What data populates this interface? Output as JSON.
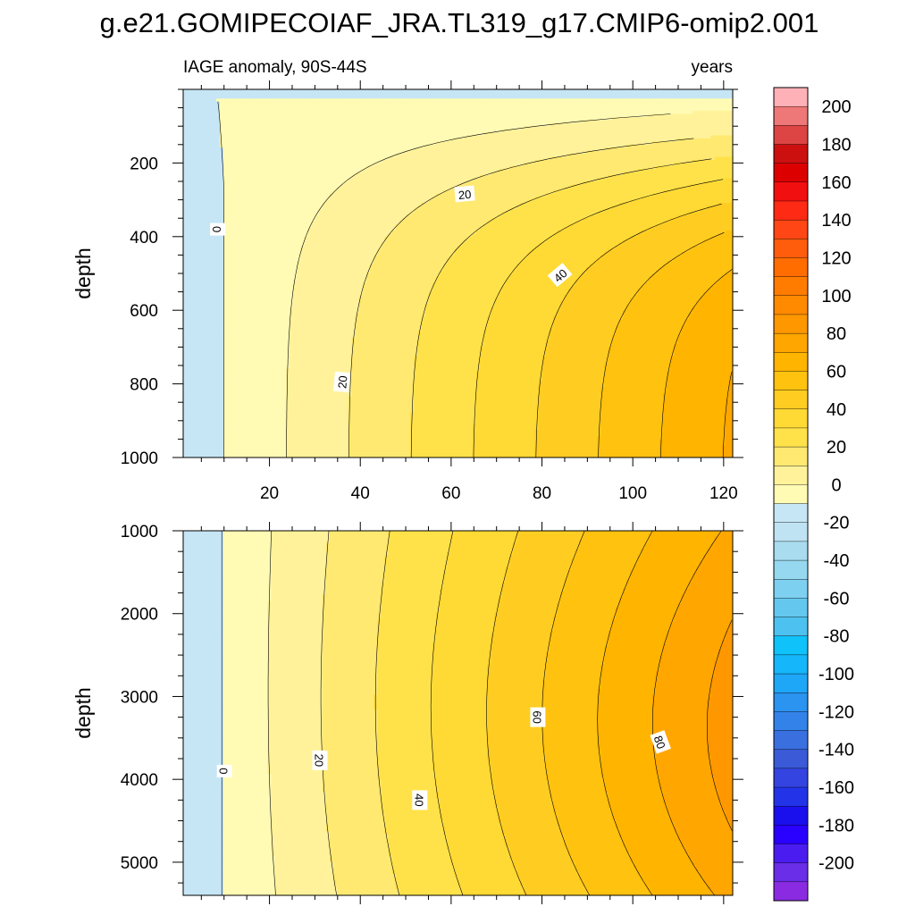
{
  "chart_data": {
    "type": "contour",
    "title": "g.e21.GOMIPECOIAF_JRA.TL319_g17.CMIP6-omip2.001",
    "units_label": "years",
    "colorbar": {
      "levels": [
        -210,
        -200,
        -190,
        -180,
        -170,
        -160,
        -150,
        -140,
        -130,
        -120,
        -110,
        -100,
        -90,
        -80,
        -70,
        -60,
        -50,
        -40,
        -30,
        -20,
        -10,
        0,
        10,
        20,
        30,
        40,
        50,
        60,
        70,
        80,
        90,
        100,
        110,
        120,
        130,
        140,
        150,
        160,
        170,
        180,
        190,
        200,
        210
      ],
      "colors": [
        "#8a2be2",
        "#6a2de8",
        "#4b1cf0",
        "#2a00ff",
        "#1a10ee",
        "#2233e8",
        "#3344e0",
        "#3a5ad8",
        "#3a6fe0",
        "#3282ea",
        "#2b93f0",
        "#1ea6f7",
        "#16b6fa",
        "#0fc2fa",
        "#4dc2f0",
        "#64c8ee",
        "#7ed0f0",
        "#95d8f0",
        "#a9dcef",
        "#bfe3f3",
        "#c6e6f5",
        "#fffbb5",
        "#fff29a",
        "#ffe971",
        "#ffe24a",
        "#ffd934",
        "#ffcd22",
        "#ffc20f",
        "#ffb400",
        "#ffa600",
        "#ff9800",
        "#ff8a00",
        "#ff7c00",
        "#ff6d00",
        "#ff5c0c",
        "#ff4614",
        "#ff2a14",
        "#f20f0f",
        "#dd0000",
        "#cc1010",
        "#dd4444",
        "#ee7777",
        "#ffb1b8"
      ],
      "tick_labels": [
        "-200",
        "-180",
        "-160",
        "-140",
        "-120",
        "-100",
        "-80",
        "-60",
        "-40",
        "-20",
        "0",
        "20",
        "40",
        "60",
        "80",
        "100",
        "120",
        "140",
        "160",
        "180",
        "200"
      ]
    },
    "panels": [
      {
        "name": "upper-ocean",
        "left_label": "IAGE anomaly, 90S-44S",
        "right_label": "years",
        "ylabel": "depth",
        "xlim": [
          1,
          122
        ],
        "ylim": [
          0,
          1000
        ],
        "yreversed": true,
        "xticks": [
          20,
          40,
          60,
          80,
          100,
          120
        ],
        "yticks": [
          200,
          400,
          600,
          800,
          1000
        ],
        "field": "iage_upper",
        "contour_labels": [
          {
            "text": "0",
            "x": 8.5,
            "y": 380,
            "rot": 90
          },
          {
            "text": "20",
            "x": 36,
            "y": 795,
            "rot": -85
          },
          {
            "text": "20",
            "x": 63,
            "y": 285,
            "rot": -5
          },
          {
            "text": "40",
            "x": 84,
            "y": 505,
            "rot": -40
          }
        ]
      },
      {
        "name": "deep-ocean",
        "left_label": "",
        "right_label": "",
        "ylabel": "depth",
        "xlim": [
          1,
          122
        ],
        "ylim": [
          1000,
          5400
        ],
        "yreversed": true,
        "xticks": [
          20,
          40,
          60,
          80,
          100,
          120
        ],
        "yticks": [
          1000,
          2000,
          3000,
          4000,
          5000
        ],
        "field": "iage_deep",
        "contour_labels": [
          {
            "text": "0",
            "x": 10,
            "y": 3900,
            "rot": 90
          },
          {
            "text": "20",
            "x": 31,
            "y": 3770,
            "rot": 90
          },
          {
            "text": "40",
            "x": 53,
            "y": 4250,
            "rot": 90
          },
          {
            "text": "60",
            "x": 79,
            "y": 3250,
            "rot": 90
          },
          {
            "text": "80",
            "x": 106,
            "y": 3550,
            "rot": 70
          }
        ]
      }
    ]
  }
}
